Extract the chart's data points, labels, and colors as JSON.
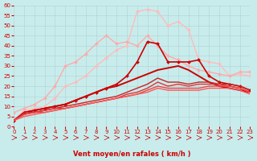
{
  "xlabel": "Vent moyen/en rafales ( km/h )",
  "xlim": [
    0,
    23
  ],
  "ylim": [
    0,
    60
  ],
  "yticks": [
    0,
    5,
    10,
    15,
    20,
    25,
    30,
    35,
    40,
    45,
    50,
    55,
    60
  ],
  "xticks": [
    0,
    1,
    2,
    3,
    4,
    5,
    6,
    7,
    8,
    9,
    10,
    11,
    12,
    13,
    14,
    15,
    16,
    17,
    18,
    19,
    20,
    21,
    22,
    23
  ],
  "bg_color": "#c8ecec",
  "grid_color": "#b0d0d0",
  "series": [
    {
      "x": [
        0,
        1,
        2,
        3,
        4,
        5,
        6,
        7,
        8,
        9,
        10,
        11,
        12,
        13,
        14,
        15,
        16,
        17,
        18,
        19,
        20,
        21,
        22,
        23
      ],
      "y": [
        3,
        8,
        9,
        10,
        14,
        20,
        22,
        25,
        30,
        34,
        38,
        40,
        57,
        58,
        57,
        50,
        52,
        48,
        33,
        32,
        31,
        25,
        26,
        25
      ],
      "color": "#ffbbbb",
      "lw": 1.0,
      "marker": "D",
      "ms": 2.0
    },
    {
      "x": [
        0,
        1,
        2,
        3,
        4,
        5,
        6,
        7,
        8,
        9,
        10,
        11,
        12,
        13,
        14,
        15,
        16,
        17,
        18,
        19,
        20,
        21,
        22,
        23
      ],
      "y": [
        7,
        9,
        11,
        14,
        20,
        30,
        32,
        36,
        41,
        45,
        41,
        42,
        40,
        45,
        40,
        35,
        33,
        30,
        28,
        27,
        26,
        25,
        27,
        27
      ],
      "color": "#ffaaaa",
      "lw": 1.0,
      "marker": "D",
      "ms": 2.0
    },
    {
      "x": [
        0,
        1,
        2,
        3,
        4,
        5,
        6,
        7,
        8,
        9,
        10,
        11,
        12,
        13,
        14,
        15,
        16,
        17,
        18,
        19,
        20,
        21,
        22,
        23
      ],
      "y": [
        3,
        7,
        8,
        9,
        10,
        11,
        13,
        15,
        17,
        19,
        21,
        25,
        32,
        42,
        41,
        32,
        32,
        32,
        33,
        25,
        22,
        21,
        20,
        18
      ],
      "color": "#cc0000",
      "lw": 1.2,
      "marker": "D",
      "ms": 2.0
    },
    {
      "x": [
        0,
        1,
        2,
        3,
        4,
        5,
        6,
        7,
        8,
        9,
        10,
        11,
        12,
        13,
        14,
        15,
        16,
        17,
        18,
        19,
        20,
        21,
        22,
        23
      ],
      "y": [
        3,
        7,
        8,
        9,
        10,
        11,
        13,
        15,
        17,
        19,
        20,
        22,
        24,
        26,
        28,
        29,
        30,
        28,
        25,
        22,
        20,
        19,
        18,
        17
      ],
      "color": "#cc0000",
      "lw": 1.4,
      "marker": null,
      "ms": 0
    },
    {
      "x": [
        0,
        1,
        2,
        3,
        4,
        5,
        6,
        7,
        8,
        9,
        10,
        11,
        12,
        13,
        14,
        15,
        16,
        17,
        18,
        19,
        20,
        21,
        22,
        23
      ],
      "y": [
        3,
        7,
        7,
        8,
        9,
        10,
        11,
        12,
        13,
        14,
        15,
        17,
        19,
        21,
        24,
        22,
        22,
        21,
        22,
        22,
        21,
        21,
        20,
        18
      ],
      "color": "#cc2222",
      "lw": 1.0,
      "marker": null,
      "ms": 0
    },
    {
      "x": [
        0,
        1,
        2,
        3,
        4,
        5,
        6,
        7,
        8,
        9,
        10,
        11,
        12,
        13,
        14,
        15,
        16,
        17,
        18,
        19,
        20,
        21,
        22,
        23
      ],
      "y": [
        3,
        6,
        7,
        8,
        9,
        9,
        10,
        11,
        12,
        13,
        14,
        16,
        17,
        19,
        22,
        20,
        21,
        20,
        21,
        21,
        21,
        20,
        19,
        17
      ],
      "color": "#dd3333",
      "lw": 1.0,
      "marker": null,
      "ms": 0
    },
    {
      "x": [
        0,
        1,
        2,
        3,
        4,
        5,
        6,
        7,
        8,
        9,
        10,
        11,
        12,
        13,
        14,
        15,
        16,
        17,
        18,
        19,
        20,
        21,
        22,
        23
      ],
      "y": [
        3,
        6,
        7,
        7,
        8,
        9,
        10,
        11,
        12,
        13,
        14,
        15,
        16,
        18,
        20,
        19,
        19,
        19,
        19,
        20,
        20,
        20,
        19,
        17
      ],
      "color": "#ee4444",
      "lw": 1.0,
      "marker": null,
      "ms": 0
    },
    {
      "x": [
        0,
        1,
        2,
        3,
        4,
        5,
        6,
        7,
        8,
        9,
        10,
        11,
        12,
        13,
        14,
        15,
        16,
        17,
        18,
        19,
        20,
        21,
        22,
        23
      ],
      "y": [
        3,
        5,
        6,
        7,
        8,
        9,
        10,
        11,
        12,
        13,
        14,
        15,
        16,
        17,
        19,
        18,
        18,
        18,
        18,
        19,
        19,
        19,
        18,
        16
      ],
      "color": "#ff5555",
      "lw": 1.0,
      "marker": null,
      "ms": 0
    }
  ],
  "arrow_color": "#cc0000"
}
